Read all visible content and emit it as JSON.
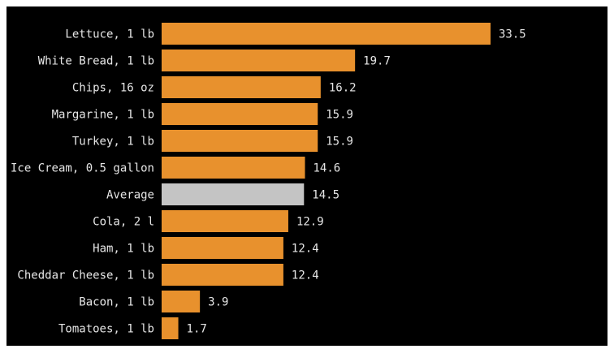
{
  "chart_data": {
    "type": "bar",
    "orientation": "horizontal",
    "title": "",
    "xlabel": "",
    "ylabel": "",
    "xlim": [
      0,
      33.5
    ],
    "grid": false,
    "legend": "none",
    "colors": {
      "background": "#000000",
      "bar": "#e8912d",
      "highlight_bar": "#c4c4c4",
      "text": "#e6e6e6"
    },
    "categories": [
      "Lettuce, 1 lb",
      "White Bread, 1 lb",
      "Chips, 16 oz",
      "Margarine, 1 lb",
      "Turkey, 1 lb",
      "Ice Cream, 0.5 gallon",
      "Average",
      "Cola, 2 l",
      "Ham, 1 lb",
      "Cheddar Cheese, 1 lb",
      "Bacon, 1 lb",
      "Tomatoes, 1 lb"
    ],
    "values": [
      33.5,
      19.7,
      16.2,
      15.9,
      15.9,
      14.6,
      14.5,
      12.9,
      12.4,
      12.4,
      3.9,
      1.7
    ],
    "value_labels": [
      "33.5",
      "19.7",
      "16.2",
      "15.9",
      "15.9",
      "14.6",
      "14.5",
      "12.9",
      "12.4",
      "12.4",
      "3.9",
      "1.7"
    ],
    "highlight": [
      "Average"
    ]
  }
}
